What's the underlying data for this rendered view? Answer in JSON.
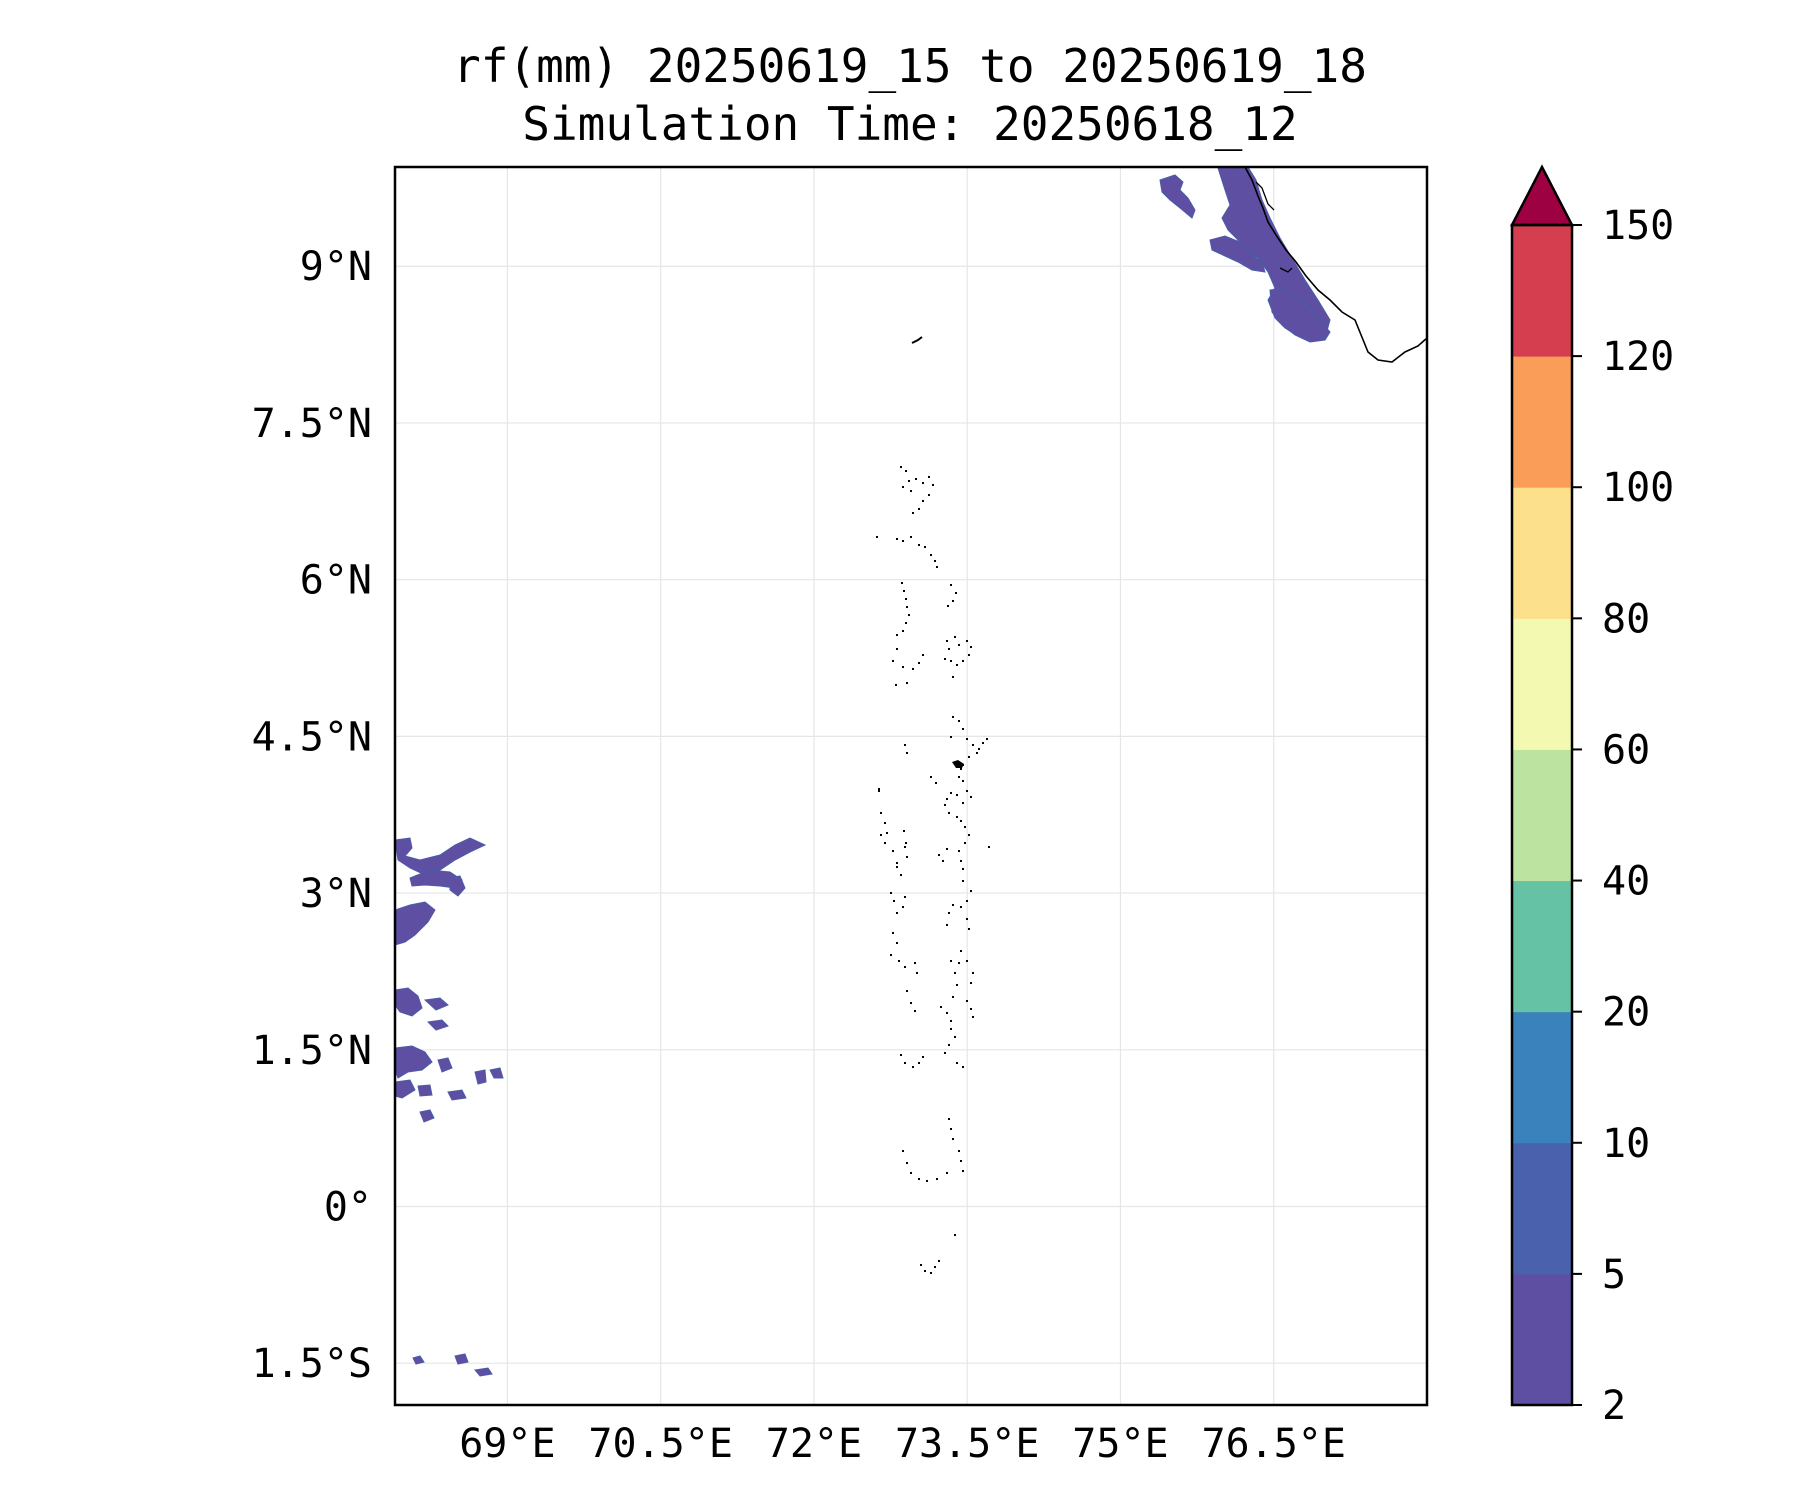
{
  "title": {
    "line1": "rf(mm) 20250619_15 to 20250619_18",
    "line2": "Simulation Time: 20250618_12"
  },
  "map": {
    "lon_range": [
      67.9,
      78.0
    ],
    "lat_range": [
      -1.9,
      9.95
    ],
    "x_ticks": [
      {
        "value": 69.0,
        "label": "69°E"
      },
      {
        "value": 70.5,
        "label": "70.5°E"
      },
      {
        "value": 72.0,
        "label": "72°E"
      },
      {
        "value": 73.5,
        "label": "73.5°E"
      },
      {
        "value": 75.0,
        "label": "75°E"
      },
      {
        "value": 76.5,
        "label": "76.5°E"
      }
    ],
    "y_ticks": [
      {
        "value": 9.0,
        "label": "9°N"
      },
      {
        "value": 7.5,
        "label": "7.5°N"
      },
      {
        "value": 6.0,
        "label": "6°N"
      },
      {
        "value": 4.5,
        "label": "4.5°N"
      },
      {
        "value": 3.0,
        "label": "3°N"
      },
      {
        "value": 1.5,
        "label": "1.5°N"
      },
      {
        "value": 0.0,
        "label": "0°"
      },
      {
        "value": -1.5,
        "label": "1.5°S"
      }
    ],
    "grid": true,
    "gridline_color": "#e6e6e6",
    "coastline_color": "#000000",
    "rain_color": "#5e4fa2",
    "rain_edge_color": "#4a5da8"
  },
  "colorbar": {
    "bounds": [
      "2",
      "5",
      "10",
      "20",
      "40",
      "60",
      "80",
      "100",
      "120",
      "150"
    ],
    "colors": [
      "#5e4fa2",
      "#4a62ad",
      "#3a82bc",
      "#66c2a5",
      "#bde3a1",
      "#f3f9b0",
      "#fde08b",
      "#f99d59",
      "#d53e4f"
    ],
    "extend_color": "#9e0142",
    "extend": "max"
  }
}
